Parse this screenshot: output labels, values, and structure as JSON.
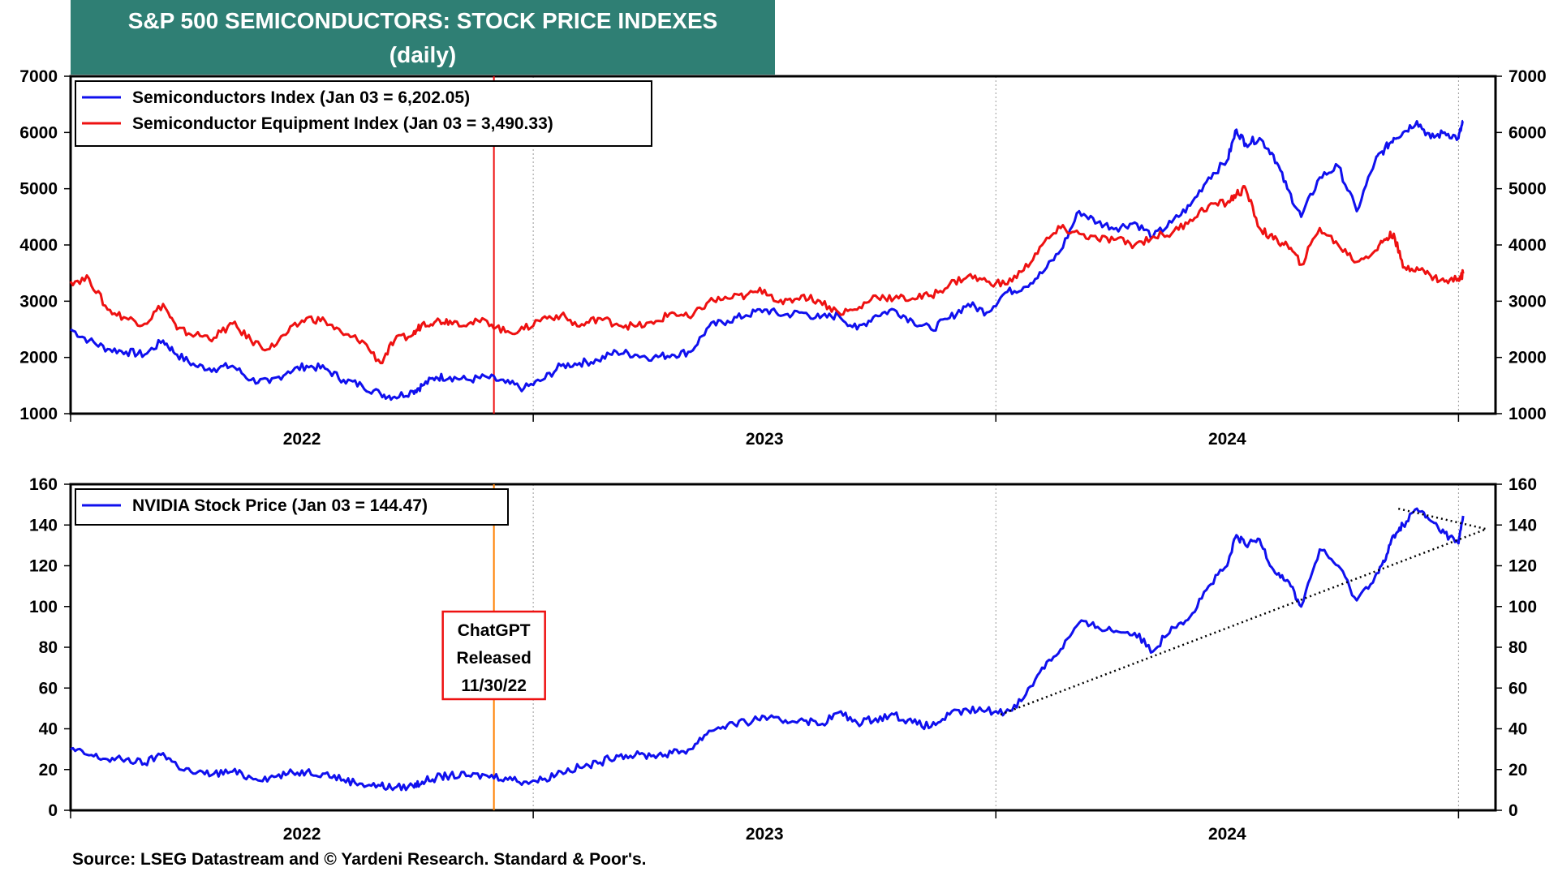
{
  "title": "S&P 500 SEMICONDUCTORS: STOCK PRICE INDEXES",
  "subtitle": "(daily)",
  "source": "Source: LSEG Datastream and © Yardeni Research. Standard & Poor's.",
  "colors": {
    "semis": "#1010ee",
    "equip": "#ee1111",
    "nvda": "#1010ee",
    "chatgpt_line_top": "#ee1111",
    "chatgpt_line_bottom": "#ff7f00",
    "title_bg": "#2f7f74"
  },
  "annotation": {
    "lines": [
      "ChatGPT",
      "Released",
      "11/30/22"
    ],
    "date": 2022.915
  },
  "chart_data": [
    {
      "type": "line",
      "panel": "top",
      "ylim": [
        1000,
        7000
      ],
      "yticks": [
        1000,
        2000,
        3000,
        4000,
        5000,
        6000,
        7000
      ],
      "xlim": [
        2022.0,
        2025.08
      ],
      "x_tick_labels": [
        {
          "label": "2022",
          "x": 2022.5
        },
        {
          "label": "2023",
          "x": 2023.5
        },
        {
          "label": "2024",
          "x": 2024.5
        }
      ],
      "year_boundaries": [
        2023.0,
        2024.0,
        2025.0
      ],
      "series": [
        {
          "name": "Semiconductors Index (Jan 03 = 6,202.05)",
          "x": [
            2022.0,
            2022.04,
            2022.08,
            2022.12,
            2022.16,
            2022.2,
            2022.23,
            2022.27,
            2022.31,
            2022.35,
            2022.39,
            2022.43,
            2022.47,
            2022.51,
            2022.55,
            2022.59,
            2022.63,
            2022.67,
            2022.7,
            2022.74,
            2022.76,
            2022.79,
            2022.82,
            2022.86,
            2022.9,
            2022.94,
            2022.98,
            2023.02,
            2023.06,
            2023.1,
            2023.14,
            2023.18,
            2023.22,
            2023.26,
            2023.3,
            2023.34,
            2023.38,
            2023.42,
            2023.46,
            2023.5,
            2023.54,
            2023.58,
            2023.62,
            2023.66,
            2023.7,
            2023.74,
            2023.78,
            2023.82,
            2023.86,
            2023.9,
            2023.94,
            2023.98,
            2024.02,
            2024.06,
            2024.1,
            2024.14,
            2024.18,
            2024.22,
            2024.26,
            2024.3,
            2024.34,
            2024.38,
            2024.42,
            2024.46,
            2024.5,
            2024.52,
            2024.54,
            2024.57,
            2024.6,
            2024.63,
            2024.66,
            2024.7,
            2024.74,
            2024.78,
            2024.82,
            2024.84,
            2024.86,
            2024.88,
            2024.91,
            2024.94,
            2024.97,
            2025.0,
            2025.01
          ],
          "values": [
            2500,
            2300,
            2150,
            2100,
            2050,
            2300,
            2050,
            1850,
            1800,
            1850,
            1600,
            1550,
            1750,
            1850,
            1800,
            1600,
            1500,
            1350,
            1300,
            1400,
            1500,
            1650,
            1650,
            1600,
            1650,
            1550,
            1450,
            1600,
            1850,
            1900,
            1950,
            2100,
            2050,
            2000,
            2050,
            2100,
            2550,
            2650,
            2750,
            2850,
            2750,
            2800,
            2700,
            2750,
            2500,
            2750,
            2850,
            2650,
            2500,
            2700,
            2950,
            2800,
            3150,
            3250,
            3500,
            3900,
            4600,
            4400,
            4300,
            4400,
            4150,
            4400,
            4700,
            5200,
            5500,
            6050,
            5800,
            5900,
            5600,
            5000,
            4500,
            5200,
            5400,
            4600,
            5500,
            5700,
            5900,
            6000,
            6200,
            5900,
            6000,
            5900,
            6202
          ]
        },
        {
          "name": "Semiconductor Equipment Index (Jan 03 = 3,490.33)",
          "x": [
            2022.0,
            2022.04,
            2022.08,
            2022.12,
            2022.16,
            2022.2,
            2022.23,
            2022.27,
            2022.31,
            2022.35,
            2022.39,
            2022.43,
            2022.47,
            2022.51,
            2022.55,
            2022.59,
            2022.63,
            2022.67,
            2022.7,
            2022.74,
            2022.76,
            2022.79,
            2022.82,
            2022.86,
            2022.9,
            2022.94,
            2022.98,
            2023.02,
            2023.06,
            2023.1,
            2023.14,
            2023.18,
            2023.22,
            2023.26,
            2023.3,
            2023.34,
            2023.38,
            2023.42,
            2023.46,
            2023.5,
            2023.54,
            2023.58,
            2023.62,
            2023.66,
            2023.7,
            2023.74,
            2023.78,
            2023.82,
            2023.86,
            2023.9,
            2023.94,
            2023.98,
            2024.02,
            2024.06,
            2024.1,
            2024.14,
            2024.18,
            2024.22,
            2024.26,
            2024.3,
            2024.34,
            2024.38,
            2024.42,
            2024.46,
            2024.5,
            2024.52,
            2024.54,
            2024.57,
            2024.6,
            2024.63,
            2024.66,
            2024.7,
            2024.74,
            2024.78,
            2024.82,
            2024.84,
            2024.86,
            2024.88,
            2024.91,
            2024.94,
            2024.97,
            2025.0,
            2025.01
          ],
          "values": [
            3350,
            3400,
            2850,
            2700,
            2600,
            2950,
            2500,
            2400,
            2350,
            2600,
            2300,
            2150,
            2450,
            2700,
            2650,
            2400,
            2300,
            1900,
            2300,
            2400,
            2600,
            2650,
            2650,
            2600,
            2650,
            2450,
            2500,
            2700,
            2750,
            2550,
            2700,
            2600,
            2550,
            2600,
            2800,
            2700,
            3000,
            3050,
            3100,
            3200,
            2950,
            3100,
            3000,
            2800,
            2850,
            3100,
            3050,
            3050,
            3100,
            3300,
            3450,
            3350,
            3300,
            3550,
            4000,
            4300,
            4200,
            4100,
            4100,
            4000,
            4150,
            4200,
            4450,
            4700,
            4750,
            4900,
            5000,
            4300,
            4100,
            4000,
            3650,
            4300,
            4000,
            3700,
            3900,
            4100,
            4200,
            3600,
            3600,
            3450,
            3350,
            3400,
            3490
          ]
        }
      ]
    },
    {
      "type": "line",
      "panel": "bottom",
      "ylim": [
        0,
        160
      ],
      "yticks": [
        0,
        20,
        40,
        60,
        80,
        100,
        120,
        140,
        160
      ],
      "xlim": [
        2022.0,
        2025.08
      ],
      "x_tick_labels": [
        {
          "label": "2022",
          "x": 2022.5
        },
        {
          "label": "2023",
          "x": 2023.5
        },
        {
          "label": "2024",
          "x": 2024.5
        }
      ],
      "year_boundaries": [
        2023.0,
        2024.0,
        2025.0
      ],
      "series": [
        {
          "name": "NVIDIA Stock Price (Jan 03 = 144.47)",
          "x": [
            2022.0,
            2022.04,
            2022.08,
            2022.12,
            2022.16,
            2022.2,
            2022.23,
            2022.27,
            2022.31,
            2022.35,
            2022.39,
            2022.43,
            2022.47,
            2022.51,
            2022.55,
            2022.59,
            2022.63,
            2022.67,
            2022.7,
            2022.74,
            2022.76,
            2022.79,
            2022.82,
            2022.86,
            2022.9,
            2022.94,
            2022.98,
            2023.02,
            2023.06,
            2023.1,
            2023.14,
            2023.18,
            2023.22,
            2023.26,
            2023.3,
            2023.34,
            2023.38,
            2023.42,
            2023.46,
            2023.5,
            2023.54,
            2023.58,
            2023.62,
            2023.66,
            2023.7,
            2023.74,
            2023.78,
            2023.82,
            2023.86,
            2023.9,
            2023.94,
            2023.98,
            2024.02,
            2024.06,
            2024.1,
            2024.14,
            2024.18,
            2024.22,
            2024.26,
            2024.3,
            2024.34,
            2024.38,
            2024.42,
            2024.46,
            2024.5,
            2024.52,
            2024.54,
            2024.57,
            2024.6,
            2024.63,
            2024.66,
            2024.7,
            2024.74,
            2024.78,
            2024.82,
            2024.84,
            2024.86,
            2024.88,
            2024.91,
            2024.94,
            2024.97,
            2025.0,
            2025.01
          ],
          "values": [
            30,
            27,
            25,
            25,
            23,
            28,
            22,
            18,
            18,
            19,
            16,
            16,
            18,
            19,
            18,
            15,
            13,
            12,
            11,
            12,
            14,
            16,
            17,
            17,
            17,
            16,
            14,
            15,
            19,
            21,
            23,
            27,
            27,
            27,
            28,
            30,
            39,
            42,
            43,
            46,
            43,
            45,
            42,
            48,
            43,
            45,
            47,
            43,
            41,
            47,
            49,
            49,
            48,
            55,
            70,
            79,
            92,
            90,
            88,
            87,
            78,
            90,
            95,
            110,
            120,
            135,
            130,
            133,
            118,
            113,
            100,
            128,
            120,
            103,
            115,
            122,
            135,
            140,
            148,
            142,
            136,
            131,
            144.47
          ]
        }
      ],
      "trend_lines": [
        {
          "from": [
            2024.01,
            47
          ],
          "to": [
            2025.06,
            138
          ]
        },
        {
          "from": [
            2024.87,
            148
          ],
          "to": [
            2025.06,
            138
          ]
        }
      ]
    }
  ]
}
